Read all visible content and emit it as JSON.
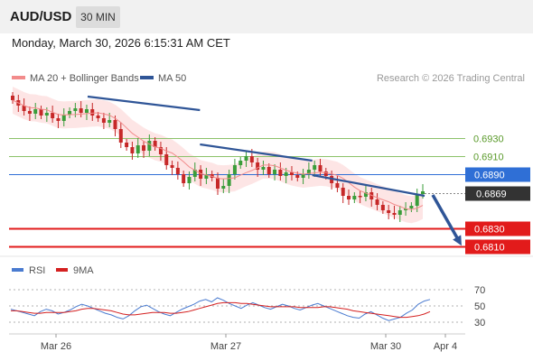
{
  "header": {
    "symbol": "AUD/USD",
    "timeframe": "30 MIN",
    "datetime": "Monday, March 30, 2026 6:15:31 AM CET"
  },
  "legend": {
    "ma20_label": "MA 20 + Bollinger Bands",
    "ma50_label": "MA 50",
    "credit": "Research © 2026 Trading Central",
    "rsi_label": "RSI",
    "ma9_label": "9MA"
  },
  "colors": {
    "ma20": "#f28b8b",
    "band_fill": "#fde0e0",
    "ma50": "#2f5597",
    "resistance_green": "#8cc26a",
    "green_label": "#5a9a2a",
    "pivot_blue": "#2f6fd6",
    "support_red": "#e21b1b",
    "current_bg": "#333333",
    "candle_up": "#3a9d3a",
    "candle_down": "#c62828",
    "rsi": "#4a7bd0",
    "rsi_ma": "#d42020"
  },
  "chart_data": [
    {
      "type": "candlestick",
      "title": "AUD/USD",
      "timeframe": "30 MIN",
      "x_ticks": [
        "Mar 26",
        "Mar 27",
        "Mar 30",
        "Apr 4"
      ],
      "ylim": [
        0.6795,
        0.6985
      ],
      "current_price": 0.6869,
      "levels": [
        {
          "label": "0.6930",
          "value": 0.693,
          "kind": "resistance"
        },
        {
          "label": "0.6910",
          "value": 0.691,
          "kind": "resistance"
        },
        {
          "label": "0.6890",
          "value": 0.689,
          "kind": "pivot"
        },
        {
          "label": "0.6869",
          "value": 0.6869,
          "kind": "current"
        },
        {
          "label": "0.6830",
          "value": 0.683,
          "kind": "support"
        },
        {
          "label": "0.6810",
          "value": 0.681,
          "kind": "support"
        }
      ],
      "closes": [
        0.6972,
        0.6966,
        0.696,
        0.6957,
        0.6962,
        0.6955,
        0.6958,
        0.6952,
        0.6949,
        0.6956,
        0.696,
        0.6963,
        0.6958,
        0.6962,
        0.6955,
        0.6952,
        0.6947,
        0.695,
        0.694,
        0.6925,
        0.692,
        0.6913,
        0.6922,
        0.6916,
        0.6927,
        0.692,
        0.6912,
        0.69,
        0.6897,
        0.689,
        0.688,
        0.6887,
        0.6895,
        0.6885,
        0.689,
        0.6886,
        0.6874,
        0.6877,
        0.689,
        0.69,
        0.6905,
        0.691,
        0.6903,
        0.6895,
        0.6898,
        0.689,
        0.6895,
        0.6888,
        0.6892,
        0.6889,
        0.6886,
        0.689,
        0.6895,
        0.69,
        0.6893,
        0.6888,
        0.688,
        0.6875,
        0.6866,
        0.6862,
        0.6866,
        0.6865,
        0.687,
        0.6862,
        0.6856,
        0.685,
        0.6847,
        0.6845,
        0.685,
        0.6852,
        0.6855,
        0.6868,
        0.6871
      ],
      "ma50": {
        "name": "MA 50",
        "points": [
          [
            0.6976,
            0.6961
          ],
          [
            0.6923,
            0.6905
          ],
          [
            0.6889,
            0.6866
          ]
        ]
      },
      "ma20_center_start": 0.6971,
      "ma20_center_end": 0.6864,
      "trend_forecast": {
        "from": 0.6869,
        "to": 0.681
      }
    },
    {
      "type": "line",
      "name": "RSI",
      "ylim": [
        20,
        80
      ],
      "y_ticks": [
        70,
        50,
        30
      ],
      "series": [
        {
          "name": "RSI",
          "values": [
            46,
            44,
            42,
            40,
            38,
            43,
            46,
            44,
            40,
            42,
            45,
            49,
            52,
            50,
            47,
            44,
            41,
            39,
            36,
            34,
            38,
            44,
            49,
            51,
            47,
            43,
            40,
            38,
            42,
            46,
            49,
            52,
            56,
            58,
            55,
            60,
            57,
            53,
            50,
            47,
            51,
            54,
            51,
            48,
            46,
            49,
            52,
            50,
            47,
            45,
            48,
            51,
            53,
            50,
            47,
            44,
            41,
            38,
            36,
            35,
            40,
            43,
            39,
            35,
            32,
            34,
            36,
            41,
            45,
            52,
            56,
            58
          ]
        },
        {
          "name": "9MA",
          "values": [
            44,
            44,
            43,
            42,
            41,
            41,
            42,
            42,
            42,
            42,
            43,
            44,
            46,
            47,
            47,
            46,
            45,
            44,
            42,
            40,
            39,
            39,
            40,
            41,
            42,
            42,
            42,
            41,
            41,
            42,
            43,
            45,
            47,
            49,
            51,
            53,
            54,
            54,
            54,
            53,
            53,
            52,
            51,
            50,
            49,
            49,
            49,
            49,
            49,
            48,
            48,
            48,
            48,
            49,
            49,
            48,
            47,
            46,
            44,
            43,
            42,
            41,
            40,
            39,
            38,
            37,
            36,
            36,
            37,
            38,
            40,
            43
          ]
        }
      ]
    }
  ]
}
